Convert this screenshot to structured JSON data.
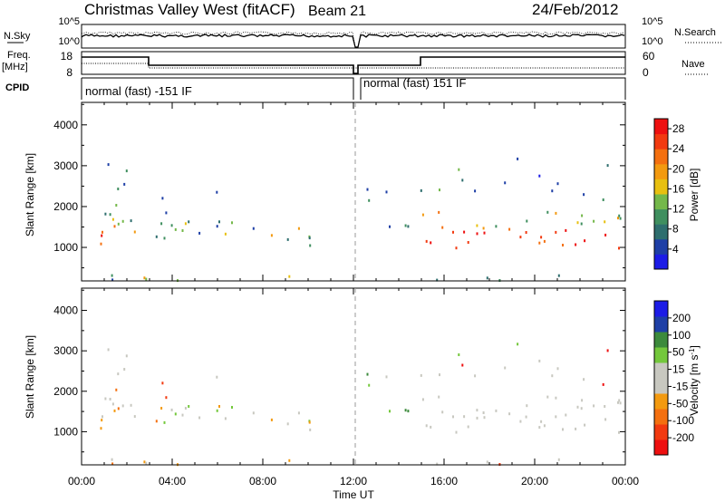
{
  "header": {
    "site": "Christmas Valley West (fitACF)",
    "beam": "Beam 21",
    "date": "24/Feb/2012"
  },
  "top_panels": {
    "nsky_label": "N.Sky",
    "nsky_ticks": [
      "10^5",
      "10^0"
    ],
    "nsearch_label": "N.Search",
    "nsearch_ticks": [
      "10^5",
      "10^0"
    ],
    "freq_label": "Freq.",
    "freq_unit": "[MHz]",
    "freq_ticks": [
      "18",
      "8"
    ],
    "nave_label": "Nave",
    "nave_ticks": [
      "60",
      "0"
    ],
    "cpid_label": "CPID",
    "cpid_left": "normal (fast) -151 IF",
    "cpid_right": "normal (fast) 151 IF"
  },
  "colors": {
    "power": [
      "#1c1ce6",
      "#1e3fa6",
      "#2e6e6e",
      "#3f8f5f",
      "#74b84a",
      "#e8c010",
      "#f39a10",
      "#f47010",
      "#f23a10",
      "#ee1010"
    ],
    "velocity": [
      "#ee1010",
      "#f23a10",
      "#f47010",
      "#f39a10",
      "#c8c8c0",
      "#c8c8c0",
      "#74c83c",
      "#3c8a3c",
      "#1e3fa6",
      "#1c1ce6"
    ]
  },
  "chart_data": [
    {
      "type": "heatmap",
      "name": "power",
      "ylabel": "Slant Range [km]",
      "ylim": [
        180,
        4550
      ],
      "yticks": [
        "1000",
        "2000",
        "3000",
        "4000"
      ],
      "xlim": [
        0,
        24
      ],
      "xticks": [
        "00:00",
        "04:00",
        "08:00",
        "12:00",
        "16:00",
        "20:00",
        "00:00"
      ],
      "colorbar_label": "Power [dB]",
      "colorbar_ticks": [
        "4",
        "8",
        "12",
        "16",
        "20",
        "24",
        "28"
      ],
      "colorbar_range": [
        0,
        30
      ]
    },
    {
      "type": "heatmap",
      "name": "velocity",
      "ylabel": "Slant Range [km]",
      "ylim": [
        180,
        4550
      ],
      "yticks": [
        "1000",
        "2000",
        "3000",
        "4000"
      ],
      "xlim": [
        0,
        24
      ],
      "xticks": [
        "00:00",
        "04:00",
        "08:00",
        "12:00",
        "16:00",
        "20:00",
        "00:00"
      ],
      "xlabel": "Time UT",
      "colorbar_label": "Velocity [m s^-1]",
      "colorbar_ticks": [
        "200",
        "100",
        "50",
        "15",
        "-15",
        "-50",
        "-100",
        "-200"
      ]
    }
  ]
}
